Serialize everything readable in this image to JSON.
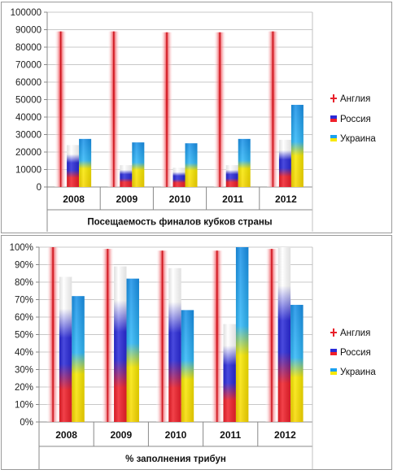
{
  "chart_data": [
    {
      "type": "bar",
      "title": "",
      "xlabel": "Посещаемость  финалов кубков страны",
      "ylabel": "",
      "categories": [
        "2008",
        "2009",
        "2010",
        "2011",
        "2012"
      ],
      "ylim": [
        0,
        100000
      ],
      "yticks": [
        "0",
        "10000",
        "20000",
        "30000",
        "40000",
        "50000",
        "60000",
        "70000",
        "80000",
        "90000",
        "100000"
      ],
      "grid": true,
      "legend_position": "right",
      "series": [
        {
          "name": "Англия",
          "values": [
            89000,
            89000,
            88500,
            88500,
            89000
          ]
        },
        {
          "name": "Россия",
          "values": [
            24000,
            12500,
            11000,
            12500,
            27000
          ]
        },
        {
          "name": "Украина",
          "values": [
            27500,
            25500,
            25000,
            27500,
            47000
          ]
        }
      ]
    },
    {
      "type": "bar",
      "title": "",
      "xlabel": "% заполнения трибун",
      "ylabel": "",
      "categories": [
        "2008",
        "2009",
        "2010",
        "2011",
        "2012"
      ],
      "ylim": [
        0,
        100
      ],
      "yticks": [
        "0%",
        "10%",
        "20%",
        "30%",
        "40%",
        "50%",
        "60%",
        "70%",
        "80%",
        "90%",
        "100%"
      ],
      "grid": true,
      "legend_position": "right",
      "series": [
        {
          "name": "Англия",
          "values": [
            100,
            99,
            98,
            98,
            99
          ]
        },
        {
          "name": "Россия",
          "values": [
            83,
            89,
            88,
            56,
            100
          ]
        },
        {
          "name": "Украина",
          "values": [
            72,
            82,
            64,
            100,
            67
          ]
        }
      ]
    }
  ],
  "colors": {
    "england": "#e8202a",
    "russia_top": "#2a2ad8",
    "russia_bottom": "#f0202a",
    "ukraine_top": "#1aa0f0",
    "ukraine_bottom": "#f8e800",
    "grid": "#c8c8c8",
    "axis": "#888888"
  }
}
